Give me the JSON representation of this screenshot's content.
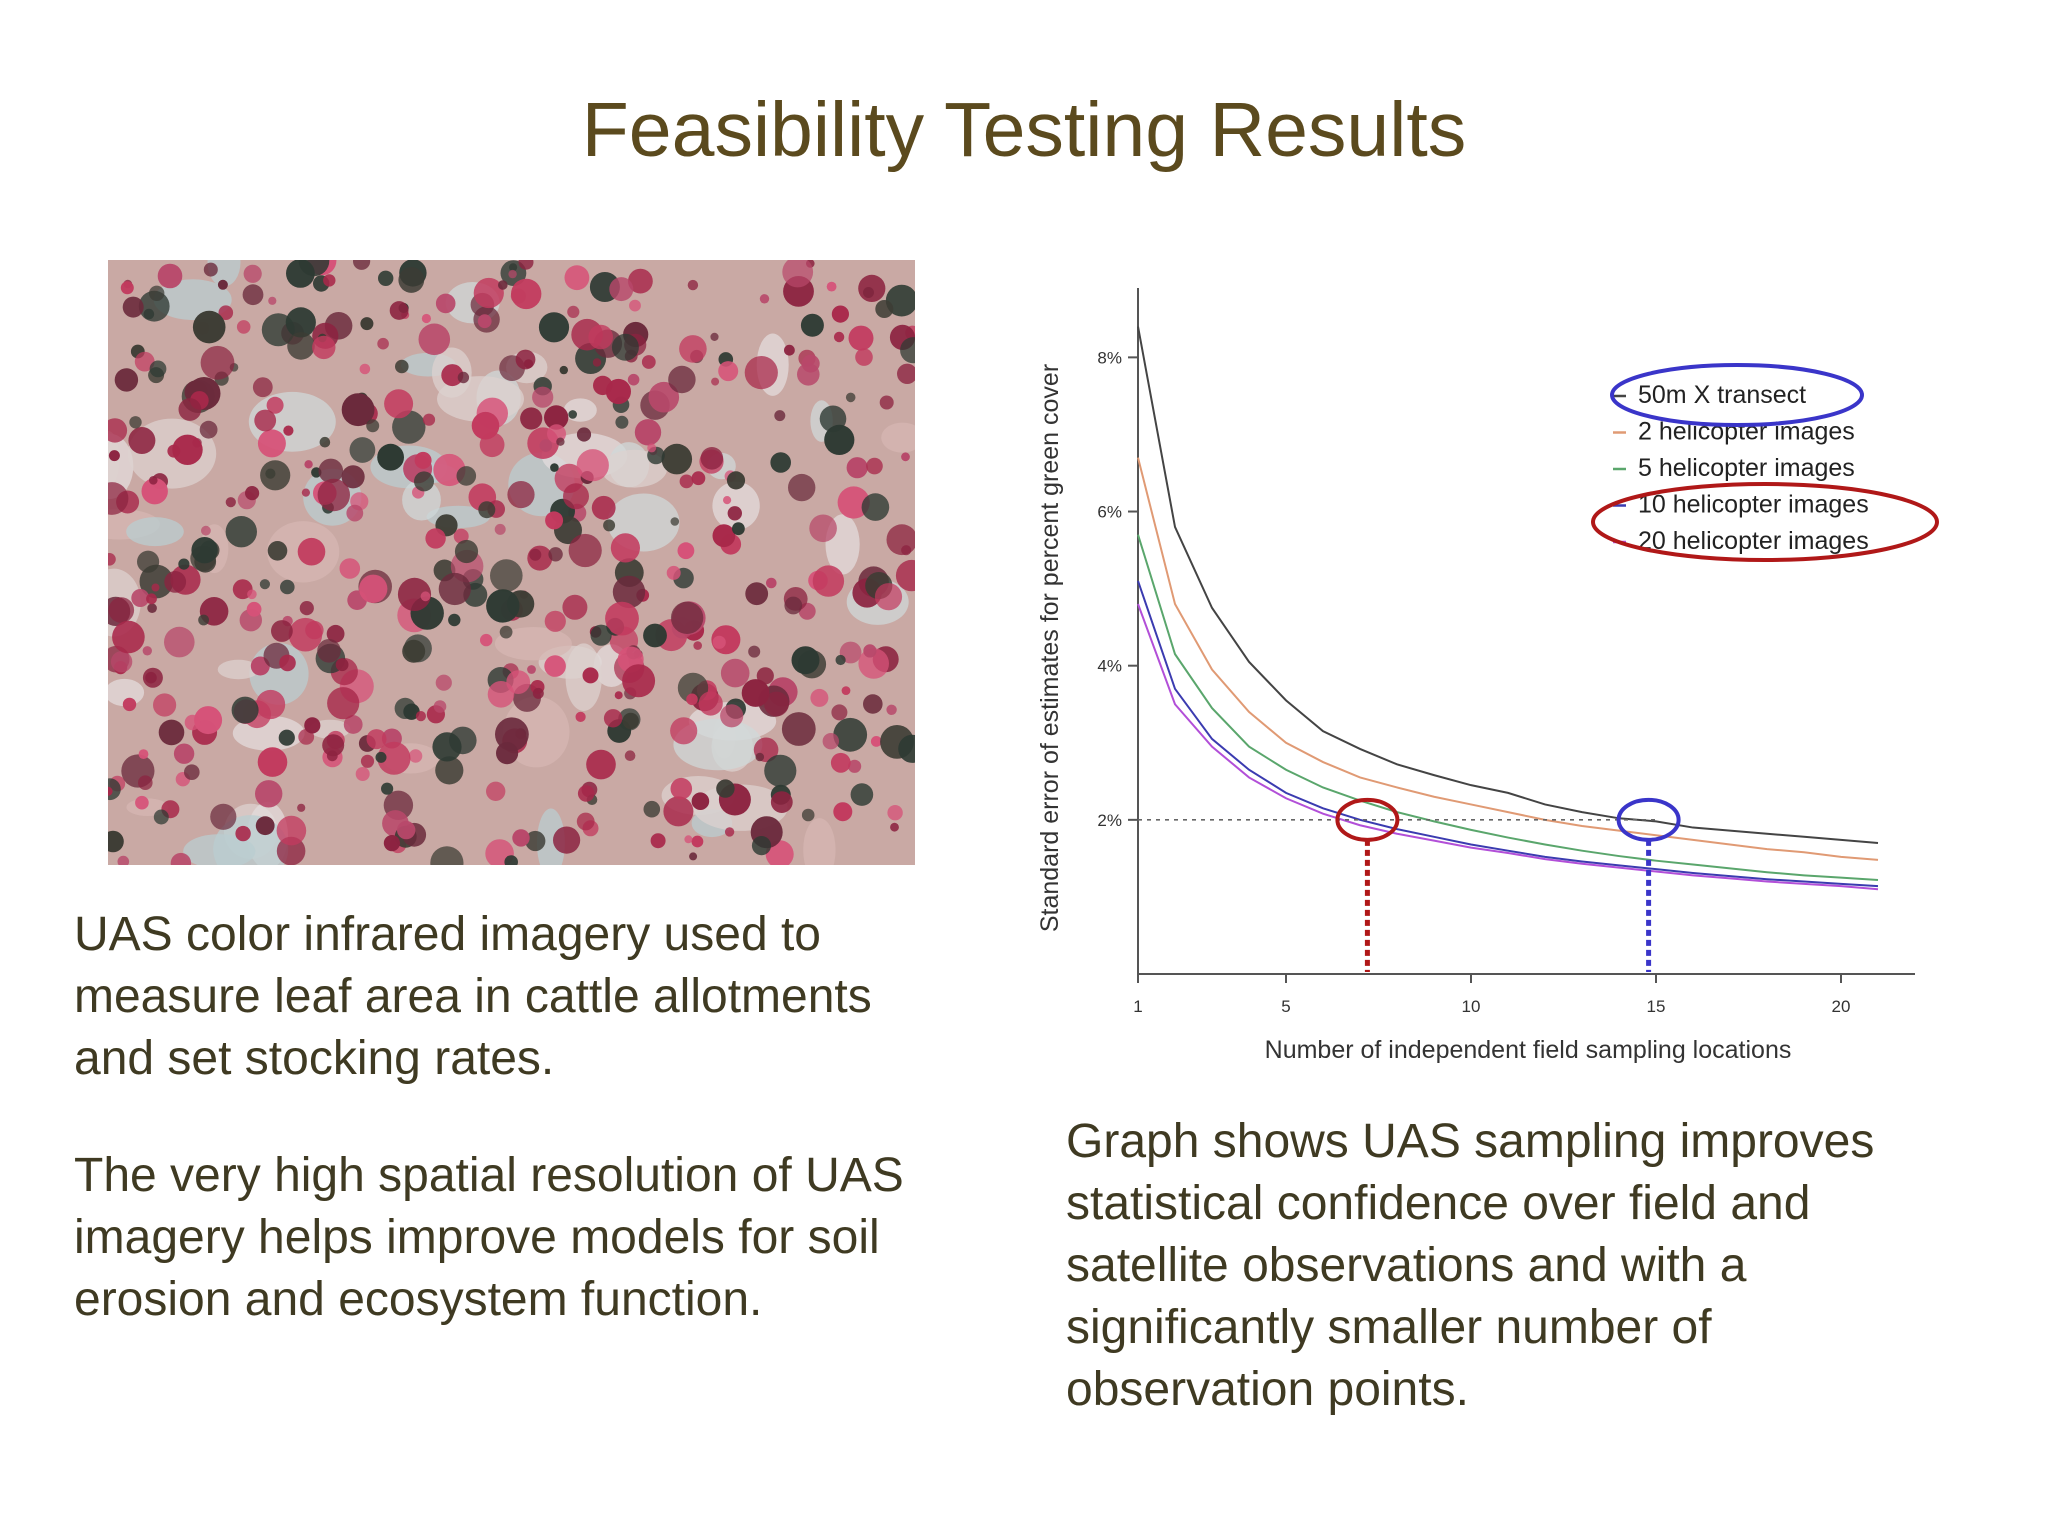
{
  "slide": {
    "title": "Feasibility Testing Results",
    "paragraph1": "UAS color infrared imagery used to measure leaf area in cattle allotments and set stocking rates.",
    "paragraph2": "The very high spatial resolution of UAS imagery helps improve models for soil erosion and ecosystem function.",
    "caption": "Graph shows UAS sampling improves statistical confidence over field and satellite observations and with a significantly smaller number of observation points."
  },
  "colors": {
    "title": "#5b4a1e",
    "body_text": "#3f3a22",
    "highlight_red": "#b01818",
    "highlight_blue": "#3a35c9"
  },
  "chart_data": {
    "type": "line",
    "title": "",
    "xlabel": "Number of independent field sampling locations",
    "ylabel": "Standard error of estimates for percent green cover",
    "x_ticks": [
      1,
      5,
      10,
      15,
      20
    ],
    "y_ticks": [
      {
        "value": 2,
        "label": "2%"
      },
      {
        "value": 4,
        "label": "4%"
      },
      {
        "value": 6,
        "label": "6%"
      },
      {
        "value": 8,
        "label": "8%"
      }
    ],
    "xlim": [
      1,
      22
    ],
    "ylim": [
      0,
      8.9
    ],
    "x": [
      1,
      2,
      3,
      4,
      5,
      6,
      7,
      8,
      9,
      10,
      11,
      12,
      13,
      14,
      15,
      16,
      17,
      18,
      19,
      20,
      21
    ],
    "legend_position": "top-right",
    "series": [
      {
        "name": "50m X transect",
        "color": "#444444",
        "values": [
          8.4,
          5.8,
          4.75,
          4.05,
          3.55,
          3.15,
          2.92,
          2.72,
          2.58,
          2.45,
          2.35,
          2.2,
          2.1,
          2.02,
          1.98,
          1.9,
          1.86,
          1.82,
          1.78,
          1.74,
          1.7
        ]
      },
      {
        "name": "2 helicopter images",
        "color": "#e09a74",
        "values": [
          6.7,
          4.8,
          3.95,
          3.4,
          3.0,
          2.75,
          2.55,
          2.42,
          2.3,
          2.2,
          2.1,
          2.0,
          1.92,
          1.86,
          1.8,
          1.74,
          1.68,
          1.62,
          1.58,
          1.52,
          1.48
        ]
      },
      {
        "name": "5 helicopter images",
        "color": "#5aa66c",
        "values": [
          5.7,
          4.15,
          3.45,
          2.95,
          2.65,
          2.42,
          2.25,
          2.1,
          1.98,
          1.87,
          1.77,
          1.68,
          1.6,
          1.53,
          1.47,
          1.42,
          1.37,
          1.32,
          1.28,
          1.25,
          1.22
        ]
      },
      {
        "name": "10 helicopter images",
        "color": "#3b3bb0",
        "values": [
          5.1,
          3.7,
          3.05,
          2.65,
          2.35,
          2.15,
          2.0,
          1.88,
          1.78,
          1.68,
          1.6,
          1.52,
          1.46,
          1.41,
          1.36,
          1.31,
          1.27,
          1.23,
          1.2,
          1.17,
          1.14
        ]
      },
      {
        "name": "20 helicopter images",
        "color": "#b24fd8",
        "values": [
          4.8,
          3.5,
          2.95,
          2.55,
          2.28,
          2.08,
          1.93,
          1.82,
          1.73,
          1.64,
          1.57,
          1.49,
          1.43,
          1.38,
          1.33,
          1.28,
          1.24,
          1.2,
          1.17,
          1.14,
          1.1
        ]
      }
    ],
    "reference_line": {
      "y": 2
    },
    "markers": [
      {
        "x": 7.2,
        "y": 2,
        "color": "#b01818"
      },
      {
        "x": 14.8,
        "y": 2,
        "color": "#3a35c9"
      }
    ]
  }
}
